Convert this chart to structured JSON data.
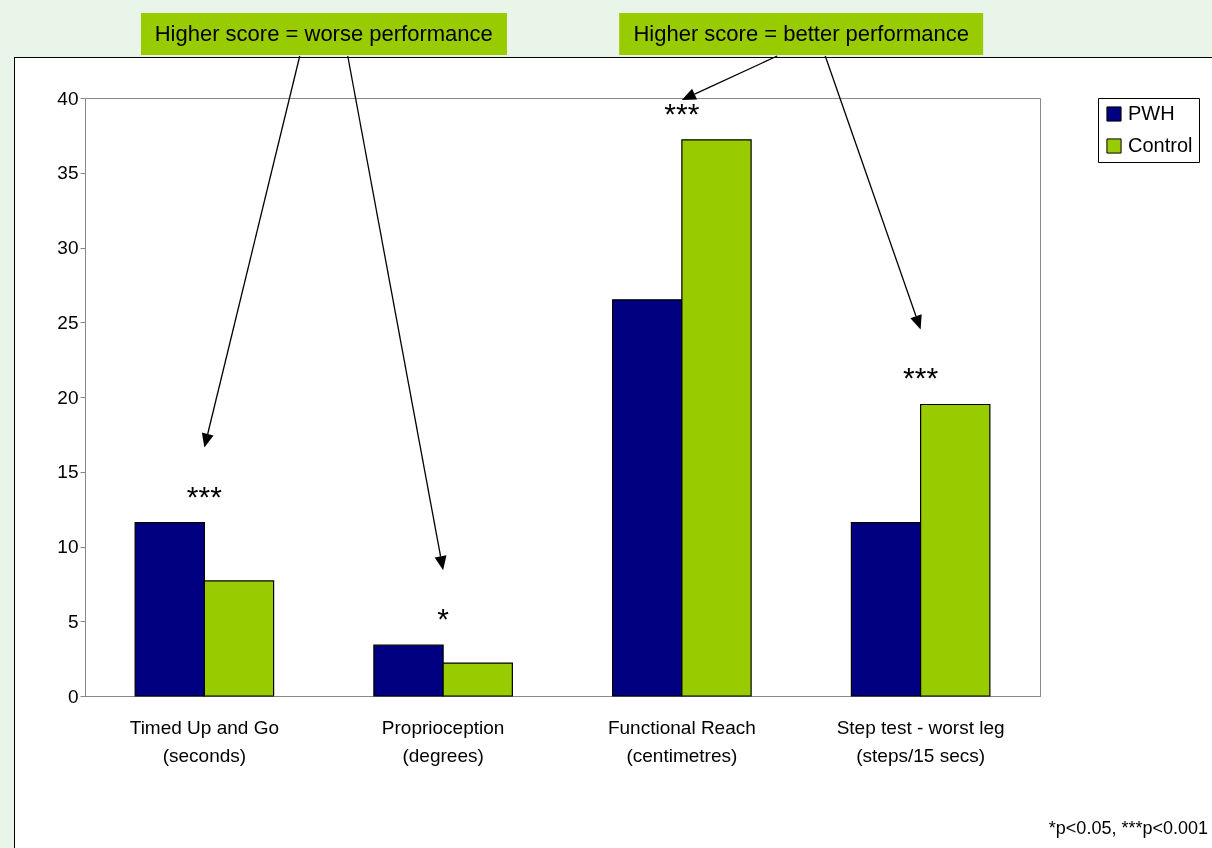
{
  "chart_data": {
    "type": "bar",
    "categories": [
      "Timed Up and Go\n(seconds)",
      "Proprioception\n(degrees)",
      "Functional Reach\n(centimetres)",
      "Step test - worst leg\n(steps/15 secs)"
    ],
    "series": [
      {
        "name": "PWH",
        "color": "#000080",
        "values": [
          11.6,
          3.4,
          26.5,
          11.6
        ]
      },
      {
        "name": "Control",
        "color": "#99cc00",
        "values": [
          7.7,
          2.2,
          37.2,
          19.5
        ]
      }
    ],
    "ylim": [
      0,
      40
    ],
    "yticks": [
      0,
      5,
      10,
      15,
      20,
      25,
      30,
      35,
      40
    ],
    "grid": false,
    "legend": "right",
    "annotations": [
      "Higher score = worse performance",
      "Higher score = better performance",
      {
        "text": "***",
        "x": "Timed Up and Go\n(seconds)",
        "y": 11.6
      },
      {
        "text": "*",
        "x": "Proprioception\n(degrees)",
        "y": 3.4
      },
      {
        "text": "***",
        "x": "Functional Reach\n(centimetres)",
        "y": 37.2
      },
      {
        "text": "***",
        "x": "Step test - worst leg\n(steps/15 secs)",
        "y": 19.5
      },
      "*p<0.05, ***p<0.001"
    ]
  }
}
